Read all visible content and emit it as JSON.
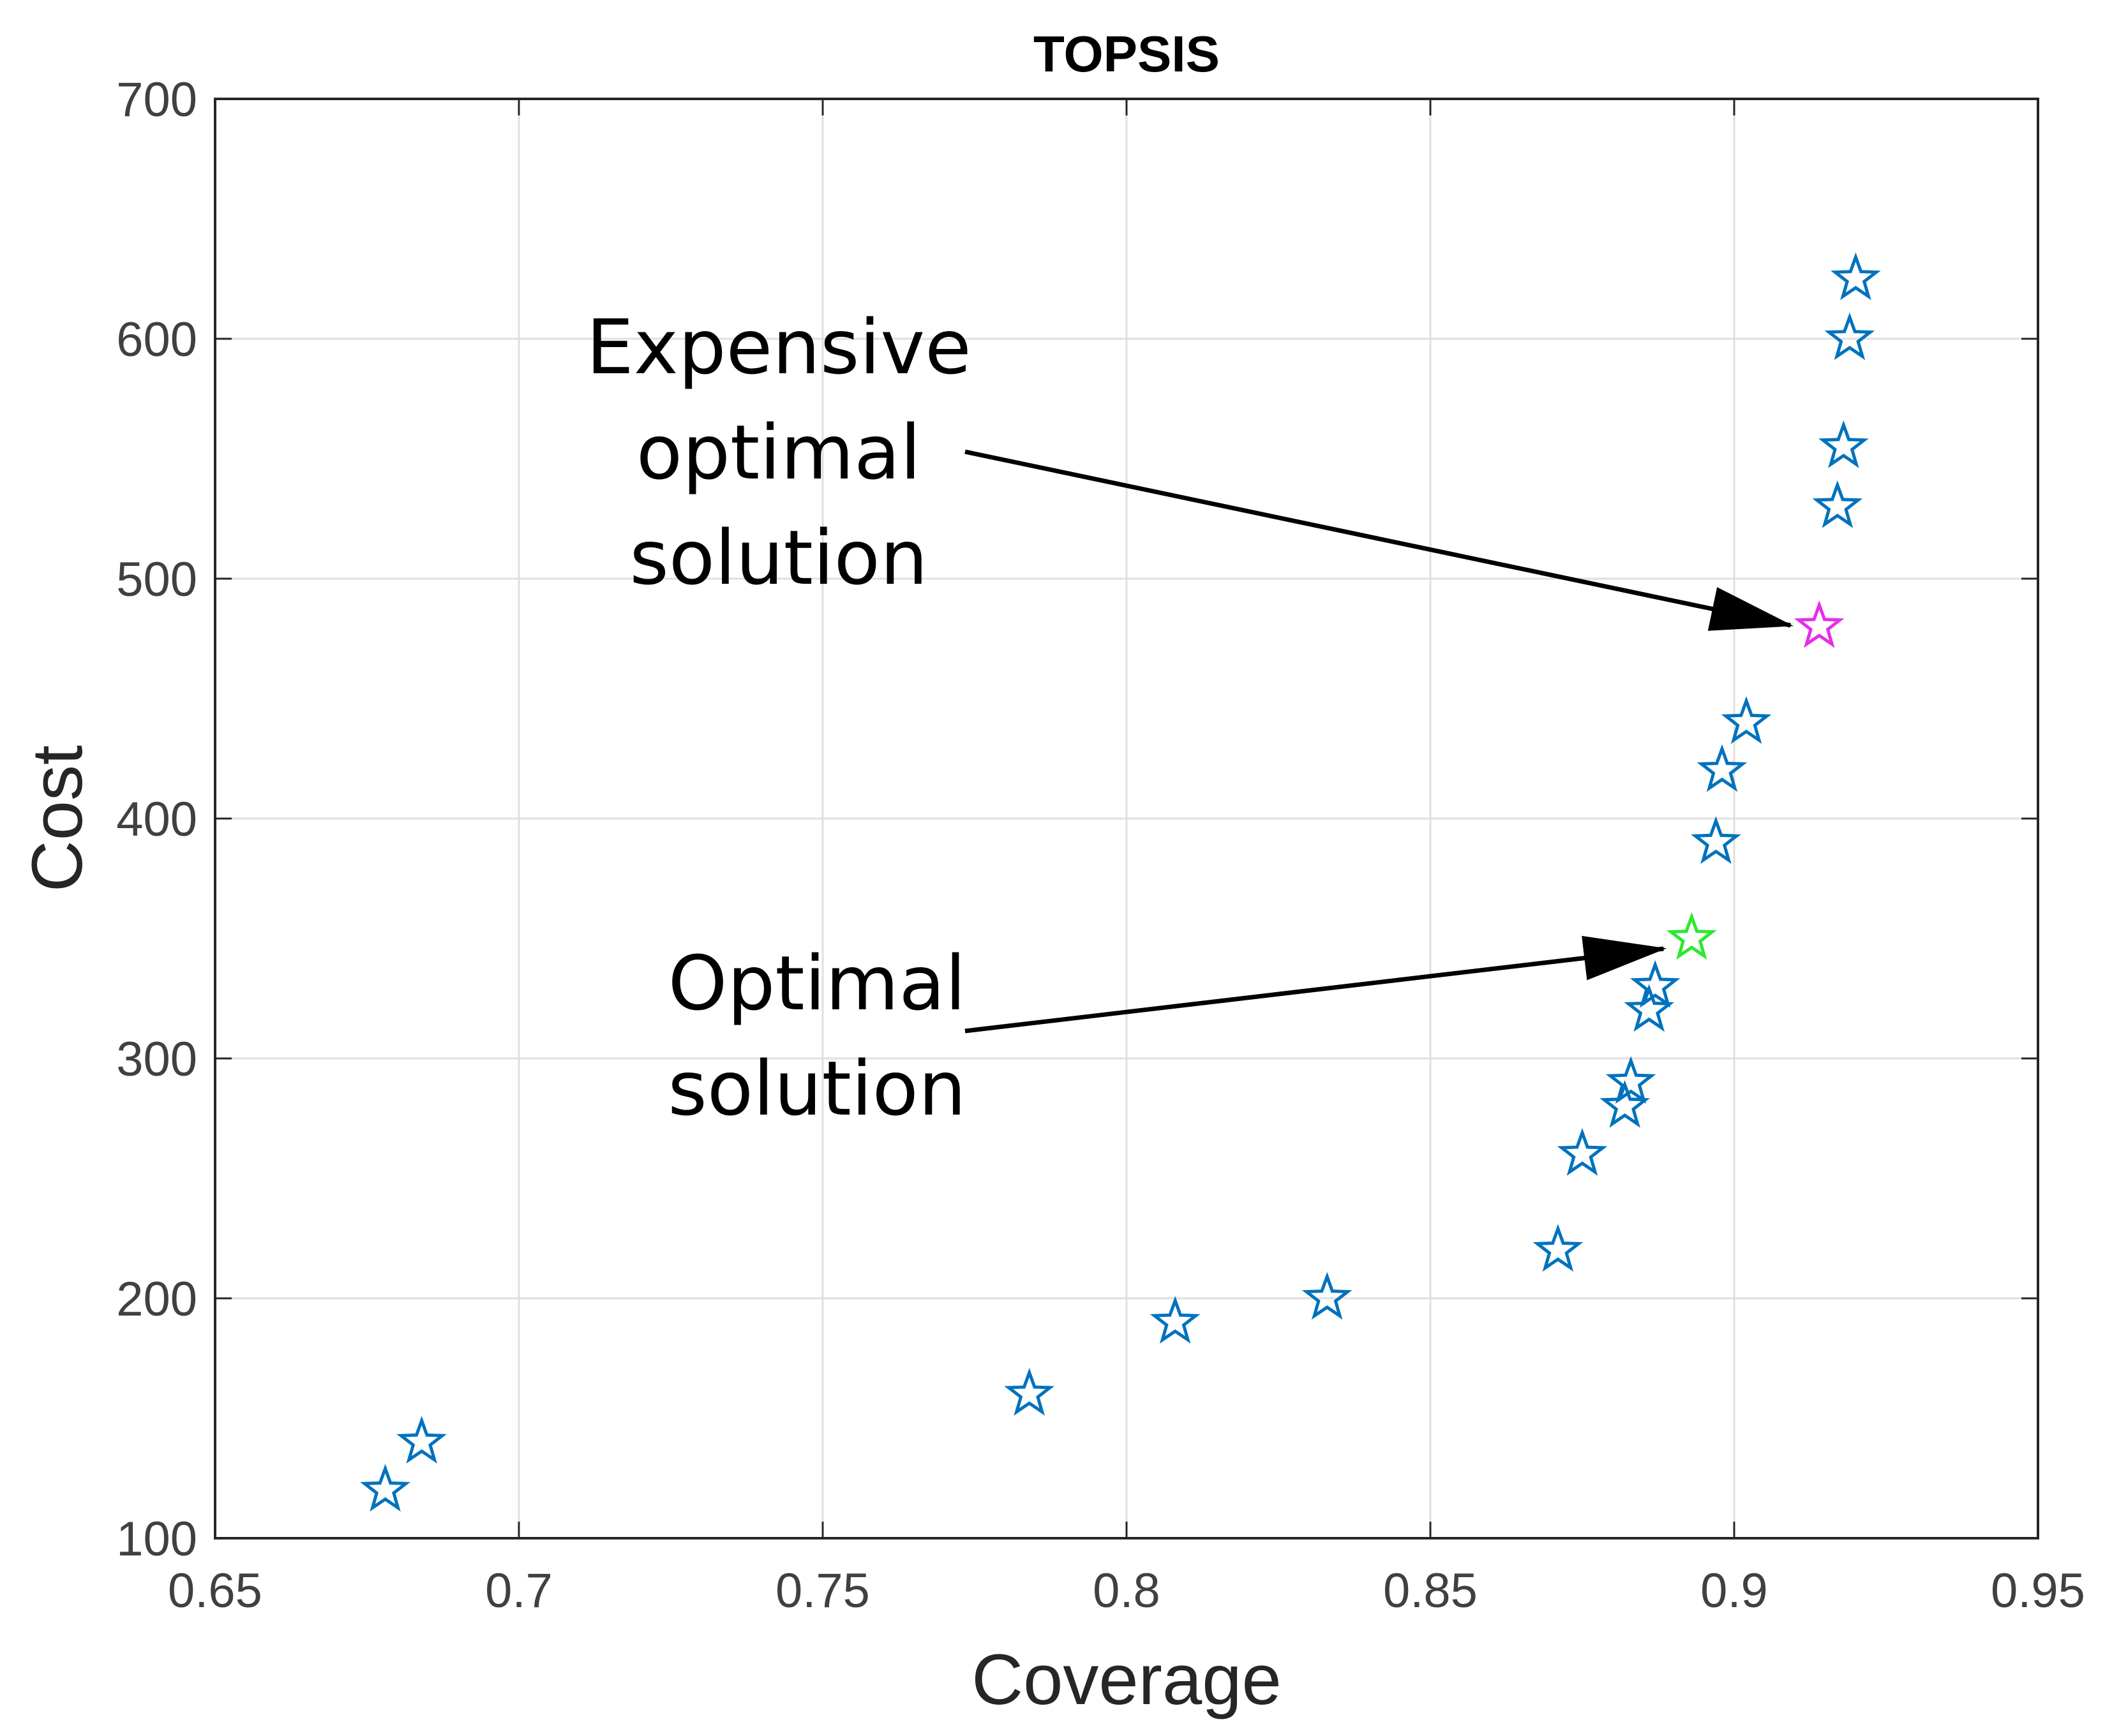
{
  "chart_data": {
    "type": "scatter",
    "title": "TOPSIS",
    "xlabel": "Coverage",
    "ylabel": "Cost",
    "xlim": [
      0.65,
      0.95
    ],
    "ylim": [
      100,
      700
    ],
    "xticks": [
      "0.65",
      "0.7",
      "0.75",
      "0.8",
      "0.85",
      "0.9",
      "0.95"
    ],
    "yticks": [
      "100",
      "200",
      "300",
      "400",
      "500",
      "600",
      "700"
    ],
    "grid": true,
    "marker": "pentagram",
    "colors": {
      "default": "#0072BD",
      "optimal": "#2EE82E",
      "expensive_optimal": "#E62EE6",
      "annotation": "#000000"
    },
    "series": [
      {
        "points": [
          {
            "x": 0.678,
            "y": 120
          },
          {
            "x": 0.684,
            "y": 140
          },
          {
            "x": 0.784,
            "y": 160
          },
          {
            "x": 0.808,
            "y": 190
          },
          {
            "x": 0.833,
            "y": 200
          },
          {
            "x": 0.871,
            "y": 220
          },
          {
            "x": 0.875,
            "y": 260
          },
          {
            "x": 0.882,
            "y": 280
          },
          {
            "x": 0.883,
            "y": 290
          },
          {
            "x": 0.886,
            "y": 320
          },
          {
            "x": 0.887,
            "y": 330
          },
          {
            "x": 0.897,
            "y": 390
          },
          {
            "x": 0.898,
            "y": 420
          },
          {
            "x": 0.902,
            "y": 440
          },
          {
            "x": 0.917,
            "y": 530
          },
          {
            "x": 0.918,
            "y": 555
          },
          {
            "x": 0.919,
            "y": 600
          },
          {
            "x": 0.92,
            "y": 625
          }
        ]
      },
      {
        "points": [
          {
            "x": 0.893,
            "y": 350
          }
        ]
      },
      {
        "points": [
          {
            "x": 0.914,
            "y": 480
          }
        ]
      }
    ],
    "annotations": [
      {
        "lines": [
          "Expensive",
          "optimal",
          "solution"
        ],
        "target": {
          "x": 0.914,
          "y": 480
        }
      },
      {
        "lines": [
          "Optimal",
          "solution"
        ],
        "target": {
          "x": 0.893,
          "y": 350
        }
      }
    ]
  }
}
